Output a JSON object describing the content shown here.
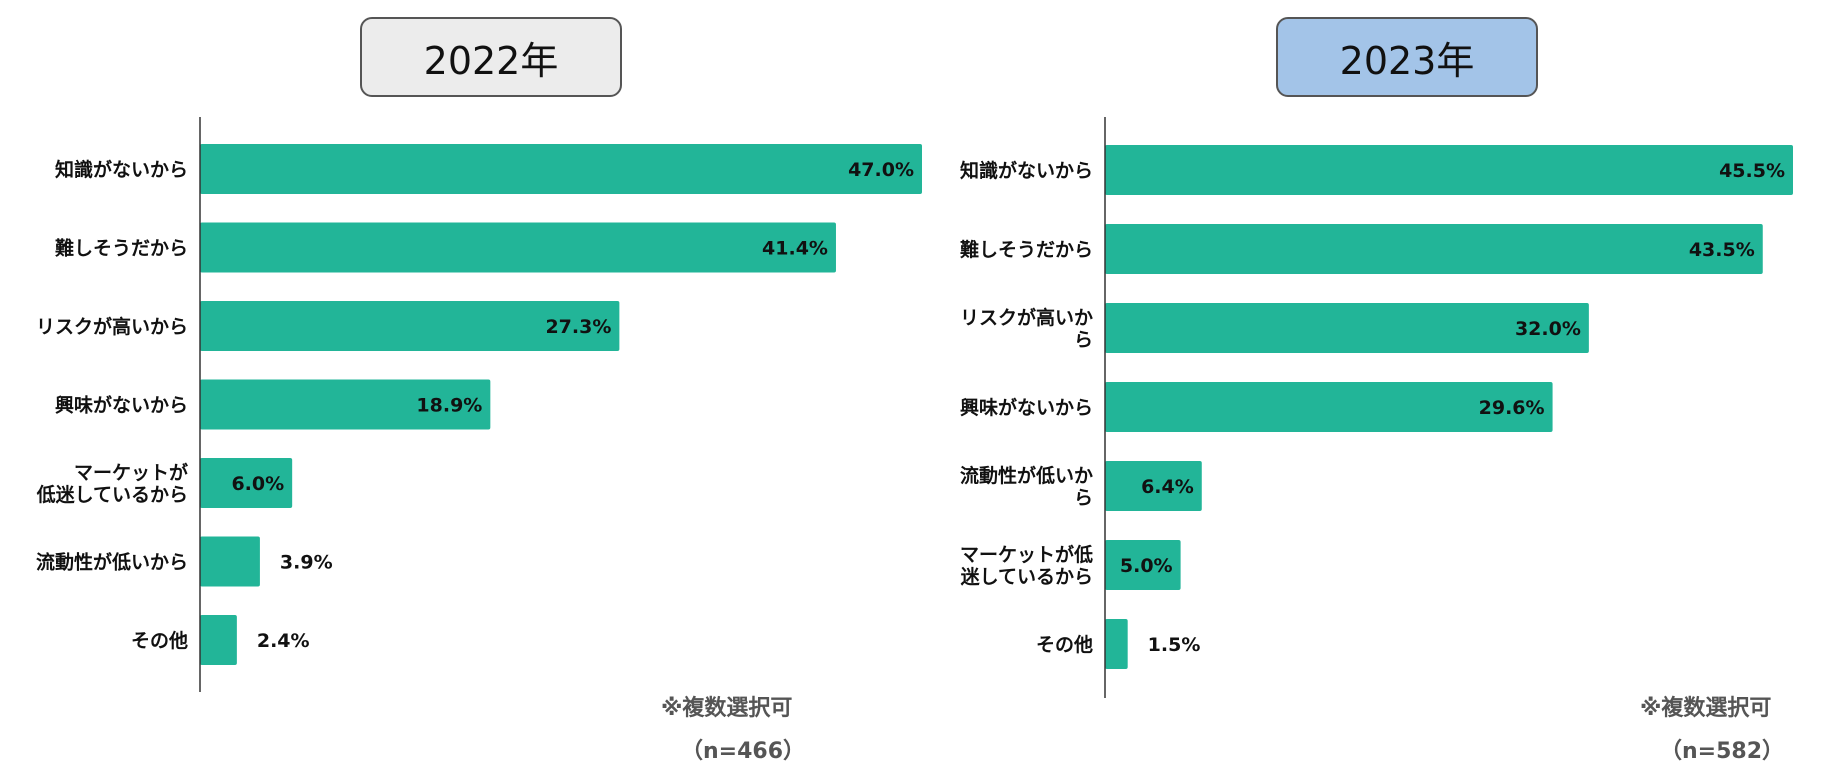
{
  "chart_data": [
    {
      "type": "bar",
      "orientation": "horizontal",
      "title": "2022年",
      "title_bg": "#ececec",
      "categories": [
        "知識がないから",
        "難しそうだから",
        "リスクが高いから",
        "興味がないから",
        "マーケットが低迷しているから",
        "流動性が低いから",
        "その他"
      ],
      "category_lines": [
        [
          "知識がないから"
        ],
        [
          "難しそうだから"
        ],
        [
          "リスクが高いから"
        ],
        [
          "興味がないから"
        ],
        [
          "マーケットが",
          "低迷しているから"
        ],
        [
          "流動性が低いから"
        ],
        [
          "その他"
        ]
      ],
      "values": [
        47.0,
        41.4,
        27.3,
        18.9,
        6.0,
        3.9,
        2.4
      ],
      "value_labels": [
        "47.0%",
        "41.4%",
        "27.3%",
        "18.9%",
        "6.0%",
        "3.9%",
        "2.4%"
      ],
      "xlim": [
        0,
        47
      ],
      "bar_color": "#22b598",
      "note": "※複数選択可",
      "n_label": "（n=466）"
    },
    {
      "type": "bar",
      "orientation": "horizontal",
      "title": "2023年",
      "title_bg": "#a3c4e8",
      "categories": [
        "知識がないから",
        "難しそうだから",
        "リスクが高いから",
        "興味がないから",
        "流動性が低いから",
        "マーケットが低迷しているから",
        "その他"
      ],
      "category_lines": [
        [
          "知識がないから"
        ],
        [
          "難しそうだから"
        ],
        [
          "リスクが高いか",
          "ら"
        ],
        [
          "興味がないから"
        ],
        [
          "流動性が低いか",
          "ら"
        ],
        [
          "マーケットが低",
          "迷しているから"
        ],
        [
          "その他"
        ]
      ],
      "values": [
        45.5,
        43.5,
        32.0,
        29.6,
        6.4,
        5.0,
        1.5
      ],
      "value_labels": [
        "45.5%",
        "43.5%",
        "32.0%",
        "29.6%",
        "6.4%",
        "5.0%",
        "1.5%"
      ],
      "xlim": [
        0,
        45.5
      ],
      "bar_color": "#22b598",
      "note": "※複数選択可",
      "n_label": "（n=582）"
    }
  ]
}
